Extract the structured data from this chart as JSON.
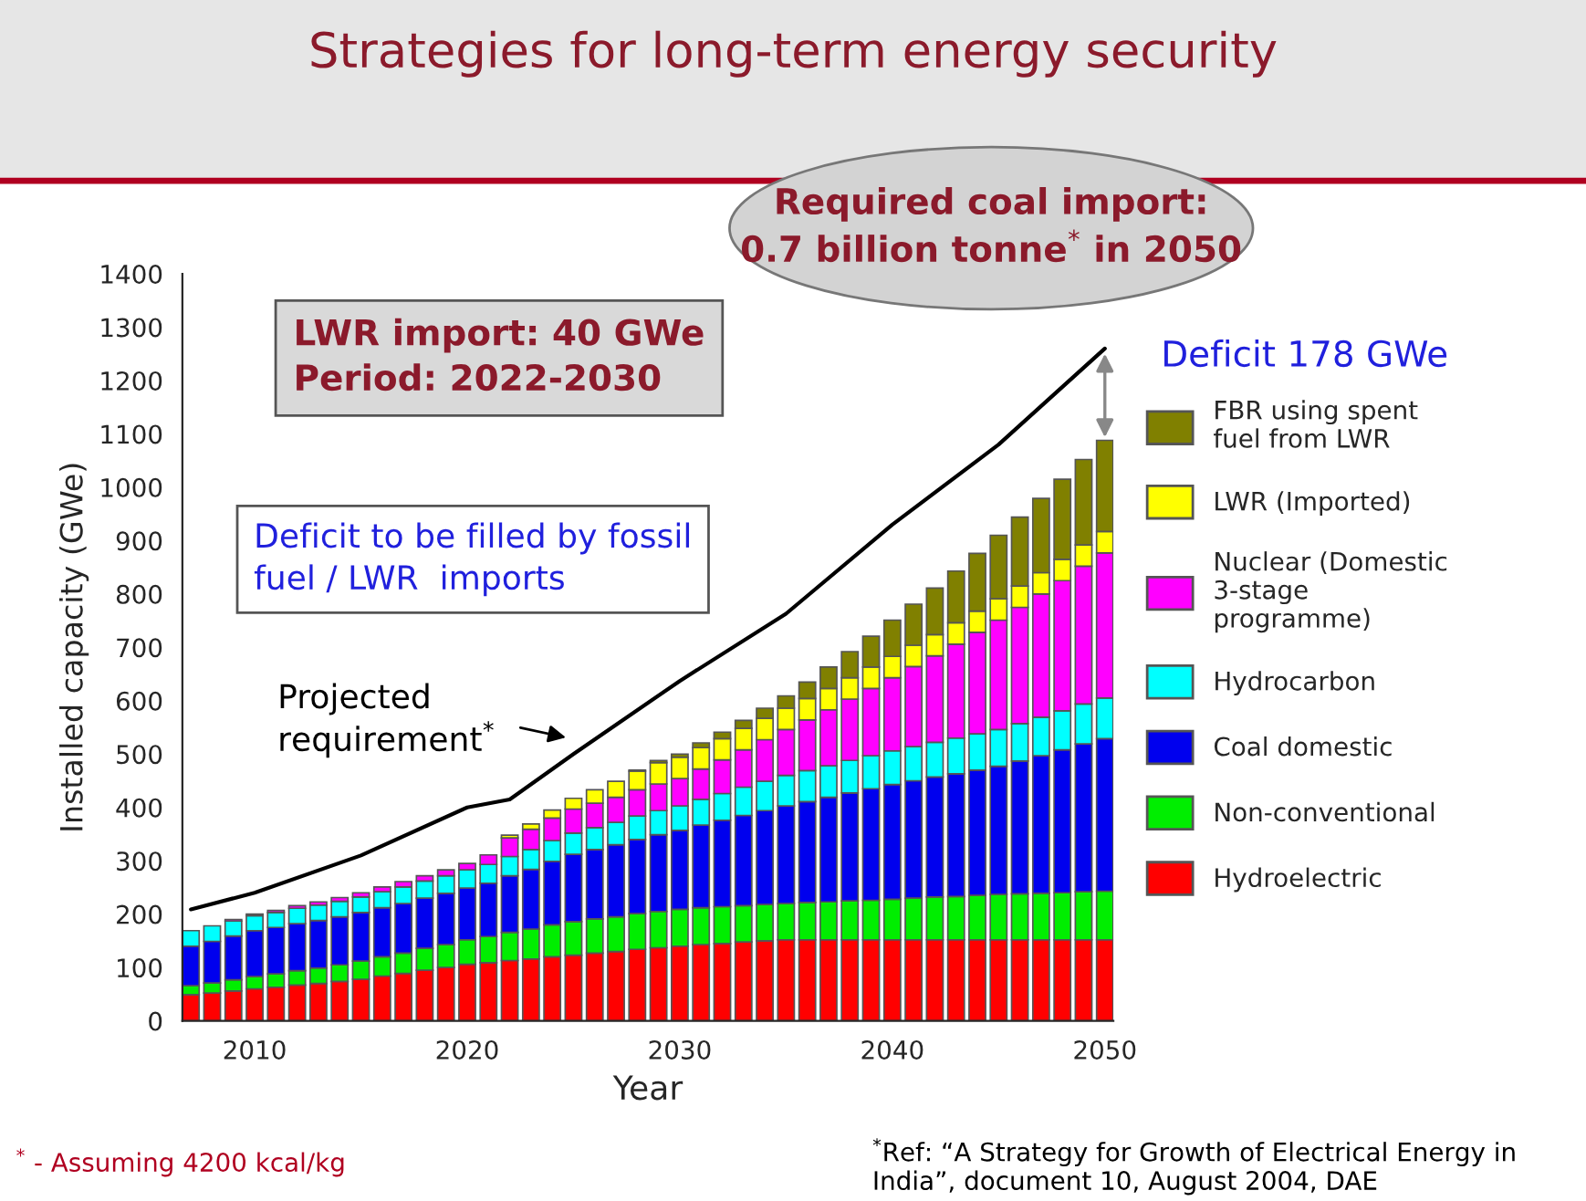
{
  "chart_data": {
    "type": "bar",
    "stacked": true,
    "title": "Strategies for long-term energy security",
    "xlabel": "Year",
    "ylabel": "Installed capacity (GWe)",
    "x": [
      2007,
      2008,
      2009,
      2010,
      2011,
      2012,
      2013,
      2014,
      2015,
      2016,
      2017,
      2018,
      2019,
      2020,
      2021,
      2022,
      2023,
      2024,
      2025,
      2026,
      2027,
      2028,
      2029,
      2030,
      2031,
      2032,
      2033,
      2034,
      2035,
      2036,
      2037,
      2038,
      2039,
      2040,
      2041,
      2042,
      2043,
      2044,
      2045,
      2046,
      2047,
      2048,
      2049,
      2050
    ],
    "xlim": [
      2006.6,
      2050.4
    ],
    "xticks": [
      2010,
      2020,
      2030,
      2040,
      2050
    ],
    "ylim": [
      0,
      1400
    ],
    "yticks": [
      0,
      100,
      200,
      300,
      400,
      500,
      600,
      700,
      800,
      900,
      1000,
      1100,
      1200,
      1300,
      1400
    ],
    "grid": false,
    "legend": "right",
    "series": [
      {
        "name": "Hydroelectric",
        "color": "#ff0000",
        "values": [
          49,
          52,
          56,
          60,
          63,
          67,
          70,
          74,
          78,
          84,
          89,
          95,
          100,
          106,
          109,
          113,
          116,
          120,
          123,
          127,
          130,
          134,
          137,
          140,
          143,
          145,
          148,
          150,
          152,
          152,
          152,
          152,
          152,
          152,
          152,
          152,
          152,
          152,
          152,
          152,
          152,
          152,
          152,
          152
        ]
      },
      {
        "name": "Non-conventional",
        "color": "#00ee00",
        "values": [
          17,
          19,
          21,
          23,
          25,
          27,
          29,
          31,
          34,
          36,
          38,
          41,
          43,
          46,
          49,
          53,
          56,
          60,
          63,
          64,
          65,
          67,
          68,
          69,
          69,
          69,
          68,
          68,
          68,
          70,
          71,
          73,
          74,
          76,
          78,
          80,
          81,
          83,
          85,
          86,
          87,
          88,
          90,
          91
        ]
      },
      {
        "name": "Coal domestic",
        "color": "#0000ee",
        "values": [
          74,
          78,
          82,
          86,
          87,
          88,
          89,
          90,
          91,
          92,
          93,
          94,
          96,
          97,
          100,
          106,
          112,
          119,
          126,
          130,
          135,
          139,
          144,
          148,
          155,
          162,
          169,
          176,
          183,
          189,
          196,
          202,
          209,
          215,
          220,
          225,
          230,
          235,
          240,
          249,
          258,
          268,
          277,
          286
        ]
      },
      {
        "name": "Hydrocarbon",
        "color": "#00ffff",
        "values": [
          29,
          29,
          28,
          28,
          28,
          29,
          29,
          29,
          29,
          30,
          31,
          32,
          33,
          34,
          35,
          36,
          37,
          39,
          40,
          41,
          42,
          44,
          45,
          46,
          48,
          50,
          53,
          55,
          57,
          58,
          59,
          61,
          62,
          63,
          64,
          65,
          67,
          68,
          69,
          70,
          72,
          73,
          75,
          76
        ]
      },
      {
        "name": "Nuclear (Domestic\n3-stage\nprogramme)",
        "color": "#ff00ff",
        "values": [
          null,
          null,
          3,
          3,
          4,
          5,
          6,
          7,
          8,
          9,
          10,
          10,
          11,
          12,
          18,
          35,
          38,
          42,
          45,
          46,
          47,
          49,
          50,
          51,
          57,
          63,
          70,
          78,
          86,
          95,
          105,
          115,
          126,
          137,
          150,
          162,
          176,
          190,
          205,
          218,
          231,
          244,
          258,
          272
        ]
      },
      {
        "name": "LWR (Imported)",
        "color": "#ffff00",
        "values": [
          null,
          null,
          null,
          null,
          null,
          null,
          null,
          null,
          null,
          null,
          null,
          null,
          null,
          null,
          null,
          5,
          10,
          15,
          20,
          25,
          30,
          35,
          40,
          40,
          40,
          40,
          40,
          40,
          40,
          40,
          40,
          40,
          40,
          40,
          40,
          40,
          40,
          40,
          40,
          40,
          40,
          40,
          40,
          40
        ]
      },
      {
        "name": "FBR using spent\nfuel from LWR",
        "color": "#808000",
        "values": [
          null,
          null,
          null,
          null,
          null,
          null,
          null,
          null,
          null,
          null,
          null,
          null,
          null,
          null,
          null,
          null,
          null,
          null,
          null,
          null,
          null,
          2,
          4,
          6,
          9,
          12,
          15,
          19,
          23,
          31,
          40,
          49,
          58,
          68,
          77,
          87,
          97,
          108,
          119,
          129,
          139,
          150,
          160,
          171
        ]
      },
      {
        "type": "line",
        "color": "#000000",
        "x": [
          2007,
          2010,
          2015,
          2020,
          2022,
          2025,
          2030,
          2035,
          2040,
          2045,
          2050
        ],
        "values": [
          209,
          240,
          310,
          400,
          415,
          500,
          637,
          763,
          930,
          1080,
          1260
        ]
      }
    ],
    "annotations": [
      "LWR import: 40 GWe\nPeriod: 2022-2030",
      "Deficit to be filled by fossil\nfuel / LWR  imports",
      "Projected\nrequirement$^{*}$",
      {
        "text": "Deficit 178 GWe",
        "x": 2050,
        "y": 1260
      },
      "Required coal import:\n0.7 billion tonne$^{*}$ in 2050",
      "$^{*}$ - Assuming 4200 kcal/kg",
      "$^{*}$Ref: “A Strategy for Growth of Electrical Energy in India”, document 10, August 2004, DAE"
    ]
  }
}
